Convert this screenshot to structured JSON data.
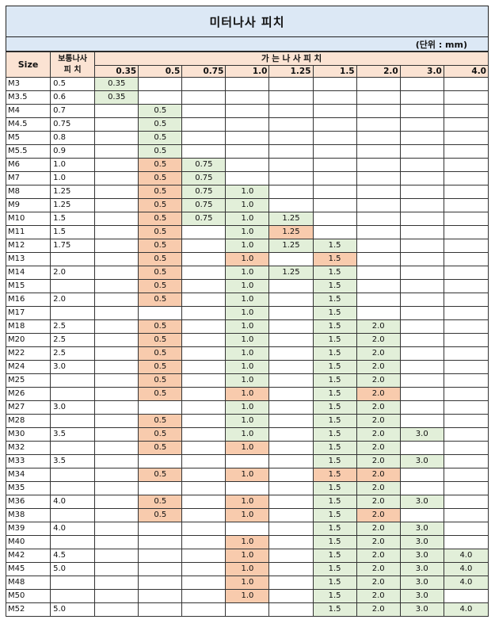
{
  "title": "미터나사 피치",
  "unit": "(단위 : mm)",
  "headers": {
    "size": "Size",
    "standard_line1": "보통나사",
    "standard_line2": "피  치",
    "fine_pitch": "가 는 나 사 피 치",
    "pitches": [
      "0.35",
      "0.5",
      "0.75",
      "1.0",
      "1.25",
      "1.5",
      "2.0",
      "3.0",
      "4.0"
    ]
  },
  "colors": {
    "header": "#fbe3d3",
    "title": "#dce8f5",
    "green": "#e2efd9",
    "orange": "#f8cbad"
  },
  "rows": [
    {
      "size": "M3",
      "std": "0.5",
      "cells": [
        {
          "v": "0.35",
          "c": "g"
        },
        {},
        {},
        {},
        {},
        {},
        {},
        {},
        {}
      ]
    },
    {
      "size": "M3.5",
      "std": "0.6",
      "cells": [
        {
          "v": "0.35",
          "c": "g"
        },
        {},
        {},
        {},
        {},
        {},
        {},
        {},
        {}
      ]
    },
    {
      "size": "M4",
      "std": "0.7",
      "cells": [
        {},
        {
          "v": "0.5",
          "c": "g"
        },
        {},
        {},
        {},
        {},
        {},
        {},
        {}
      ]
    },
    {
      "size": "M4.5",
      "std": "0.75",
      "cells": [
        {},
        {
          "v": "0.5",
          "c": "g"
        },
        {},
        {},
        {},
        {},
        {},
        {},
        {}
      ]
    },
    {
      "size": "M5",
      "std": "0.8",
      "cells": [
        {},
        {
          "v": "0.5",
          "c": "g"
        },
        {},
        {},
        {},
        {},
        {},
        {},
        {}
      ]
    },
    {
      "size": "M5.5",
      "std": "0.9",
      "cells": [
        {},
        {
          "v": "0.5",
          "c": "g"
        },
        {},
        {},
        {},
        {},
        {},
        {},
        {}
      ]
    },
    {
      "size": "M6",
      "std": "1.0",
      "cells": [
        {},
        {
          "v": "0.5",
          "c": "o"
        },
        {
          "v": "0.75",
          "c": "g"
        },
        {},
        {},
        {},
        {},
        {},
        {}
      ]
    },
    {
      "size": "M7",
      "std": "1.0",
      "cells": [
        {},
        {
          "v": "0.5",
          "c": "o"
        },
        {
          "v": "0.75",
          "c": "g"
        },
        {},
        {},
        {},
        {},
        {},
        {}
      ]
    },
    {
      "size": "M8",
      "std": "1.25",
      "cells": [
        {},
        {
          "v": "0.5",
          "c": "o"
        },
        {
          "v": "0.75",
          "c": "g"
        },
        {
          "v": "1.0",
          "c": "g"
        },
        {},
        {},
        {},
        {},
        {}
      ]
    },
    {
      "size": "M9",
      "std": "1.25",
      "cells": [
        {},
        {
          "v": "0.5",
          "c": "o"
        },
        {
          "v": "0.75",
          "c": "g"
        },
        {
          "v": "1.0",
          "c": "g"
        },
        {},
        {},
        {},
        {},
        {}
      ]
    },
    {
      "size": "M10",
      "std": "1.5",
      "cells": [
        {},
        {
          "v": "0.5",
          "c": "o"
        },
        {
          "v": "0.75",
          "c": "g"
        },
        {
          "v": "1.0",
          "c": "g"
        },
        {
          "v": "1.25",
          "c": "g"
        },
        {},
        {},
        {},
        {}
      ]
    },
    {
      "size": "M11",
      "std": "1.5",
      "cells": [
        {},
        {
          "v": "0.5",
          "c": "o"
        },
        {},
        {
          "v": "1.0",
          "c": "g"
        },
        {
          "v": "1.25",
          "c": "o"
        },
        {},
        {},
        {},
        {}
      ]
    },
    {
      "size": "M12",
      "std": "1.75",
      "cells": [
        {},
        {
          "v": "0.5",
          "c": "o"
        },
        {},
        {
          "v": "1.0",
          "c": "g"
        },
        {
          "v": "1.25",
          "c": "g"
        },
        {
          "v": "1.5",
          "c": "g"
        },
        {},
        {},
        {}
      ]
    },
    {
      "size": "M13",
      "std": "",
      "cells": [
        {},
        {
          "v": "0.5",
          "c": "o"
        },
        {},
        {
          "v": "1.0",
          "c": "o"
        },
        {},
        {
          "v": "1.5",
          "c": "o"
        },
        {},
        {},
        {}
      ]
    },
    {
      "size": "M14",
      "std": "2.0",
      "cells": [
        {},
        {
          "v": "0.5",
          "c": "o"
        },
        {},
        {
          "v": "1.0",
          "c": "g"
        },
        {
          "v": "1.25",
          "c": "g"
        },
        {
          "v": "1.5",
          "c": "g"
        },
        {},
        {},
        {}
      ]
    },
    {
      "size": "M15",
      "std": "",
      "cells": [
        {},
        {
          "v": "0.5",
          "c": "o"
        },
        {},
        {
          "v": "1.0",
          "c": "g"
        },
        {},
        {
          "v": "1.5",
          "c": "g"
        },
        {},
        {},
        {}
      ]
    },
    {
      "size": "M16",
      "std": "2.0",
      "cells": [
        {},
        {
          "v": "0.5",
          "c": "o"
        },
        {},
        {
          "v": "1.0",
          "c": "g"
        },
        {},
        {
          "v": "1.5",
          "c": "g"
        },
        {},
        {},
        {}
      ]
    },
    {
      "size": "M17",
      "std": "",
      "cells": [
        {},
        {},
        {},
        {
          "v": "1.0",
          "c": "g"
        },
        {},
        {
          "v": "1.5",
          "c": "g"
        },
        {},
        {},
        {}
      ]
    },
    {
      "size": "M18",
      "std": "2.5",
      "cells": [
        {},
        {
          "v": "0.5",
          "c": "o"
        },
        {},
        {
          "v": "1.0",
          "c": "g"
        },
        {},
        {
          "v": "1.5",
          "c": "g"
        },
        {
          "v": "2.0",
          "c": "g"
        },
        {},
        {}
      ]
    },
    {
      "size": "M20",
      "std": "2.5",
      "cells": [
        {},
        {
          "v": "0.5",
          "c": "o"
        },
        {},
        {
          "v": "1.0",
          "c": "g"
        },
        {},
        {
          "v": "1.5",
          "c": "g"
        },
        {
          "v": "2.0",
          "c": "g"
        },
        {},
        {}
      ]
    },
    {
      "size": "M22",
      "std": "2.5",
      "cells": [
        {},
        {
          "v": "0.5",
          "c": "o"
        },
        {},
        {
          "v": "1.0",
          "c": "g"
        },
        {},
        {
          "v": "1.5",
          "c": "g"
        },
        {
          "v": "2.0",
          "c": "g"
        },
        {},
        {}
      ]
    },
    {
      "size": "M24",
      "std": "3.0",
      "cells": [
        {},
        {
          "v": "0.5",
          "c": "o"
        },
        {},
        {
          "v": "1.0",
          "c": "g"
        },
        {},
        {
          "v": "1.5",
          "c": "g"
        },
        {
          "v": "2.0",
          "c": "g"
        },
        {},
        {}
      ]
    },
    {
      "size": "M25",
      "std": "",
      "cells": [
        {},
        {
          "v": "0.5",
          "c": "o"
        },
        {},
        {
          "v": "1.0",
          "c": "g"
        },
        {},
        {
          "v": "1.5",
          "c": "g"
        },
        {
          "v": "2.0",
          "c": "g"
        },
        {},
        {}
      ]
    },
    {
      "size": "M26",
      "std": "",
      "cells": [
        {},
        {
          "v": "0.5",
          "c": "o"
        },
        {},
        {
          "v": "1.0",
          "c": "o"
        },
        {},
        {
          "v": "1.5",
          "c": "g"
        },
        {
          "v": "2.0",
          "c": "o"
        },
        {},
        {}
      ]
    },
    {
      "size": "M27",
      "std": "3.0",
      "cells": [
        {},
        {},
        {},
        {
          "v": "1.0",
          "c": "g"
        },
        {},
        {
          "v": "1.5",
          "c": "g"
        },
        {
          "v": "2.0",
          "c": "g"
        },
        {},
        {}
      ]
    },
    {
      "size": "M28",
      "std": "",
      "cells": [
        {},
        {
          "v": "0.5",
          "c": "o"
        },
        {},
        {
          "v": "1.0",
          "c": "g"
        },
        {},
        {
          "v": "1.5",
          "c": "g"
        },
        {
          "v": "2.0",
          "c": "g"
        },
        {},
        {}
      ]
    },
    {
      "size": "M30",
      "std": "3.5",
      "cells": [
        {},
        {
          "v": "0.5",
          "c": "o"
        },
        {},
        {
          "v": "1.0",
          "c": "g"
        },
        {},
        {
          "v": "1.5",
          "c": "g"
        },
        {
          "v": "2.0",
          "c": "g"
        },
        {
          "v": "3.0",
          "c": "g"
        },
        {}
      ]
    },
    {
      "size": "M32",
      "std": "",
      "cells": [
        {},
        {
          "v": "0.5",
          "c": "o"
        },
        {},
        {
          "v": "1.0",
          "c": "o"
        },
        {},
        {
          "v": "1.5",
          "c": "g"
        },
        {
          "v": "2.0",
          "c": "g"
        },
        {},
        {}
      ]
    },
    {
      "size": "M33",
      "std": "3.5",
      "cells": [
        {},
        {},
        {},
        {},
        {},
        {
          "v": "1.5",
          "c": "g"
        },
        {
          "v": "2.0",
          "c": "g"
        },
        {
          "v": "3.0",
          "c": "g"
        },
        {}
      ]
    },
    {
      "size": "M34",
      "std": "",
      "cells": [
        {},
        {
          "v": "0.5",
          "c": "o"
        },
        {},
        {
          "v": "1.0",
          "c": "o"
        },
        {},
        {
          "v": "1.5",
          "c": "o"
        },
        {
          "v": "2.0",
          "c": "o"
        },
        {},
        {}
      ]
    },
    {
      "size": "M35",
      "std": "",
      "cells": [
        {},
        {},
        {},
        {},
        {},
        {
          "v": "1.5",
          "c": "g"
        },
        {
          "v": "2.0",
          "c": "g"
        },
        {},
        {}
      ]
    },
    {
      "size": "M36",
      "std": "4.0",
      "cells": [
        {},
        {
          "v": "0.5",
          "c": "o"
        },
        {},
        {
          "v": "1.0",
          "c": "o"
        },
        {},
        {
          "v": "1.5",
          "c": "g"
        },
        {
          "v": "2.0",
          "c": "g"
        },
        {
          "v": "3.0",
          "c": "g"
        },
        {}
      ]
    },
    {
      "size": "M38",
      "std": "",
      "cells": [
        {},
        {
          "v": "0.5",
          "c": "o"
        },
        {},
        {
          "v": "1.0",
          "c": "o"
        },
        {},
        {
          "v": "1.5",
          "c": "g"
        },
        {
          "v": "2.0",
          "c": "o"
        },
        {},
        {}
      ]
    },
    {
      "size": "M39",
      "std": "4.0",
      "cells": [
        {},
        {},
        {},
        {},
        {},
        {
          "v": "1.5",
          "c": "g"
        },
        {
          "v": "2.0",
          "c": "g"
        },
        {
          "v": "3.0",
          "c": "g"
        },
        {}
      ]
    },
    {
      "size": "M40",
      "std": "",
      "cells": [
        {},
        {},
        {},
        {
          "v": "1.0",
          "c": "o"
        },
        {},
        {
          "v": "1.5",
          "c": "g"
        },
        {
          "v": "2.0",
          "c": "g"
        },
        {
          "v": "3.0",
          "c": "g"
        },
        {}
      ]
    },
    {
      "size": "M42",
      "std": "4.5",
      "cells": [
        {},
        {},
        {},
        {
          "v": "1.0",
          "c": "o"
        },
        {},
        {
          "v": "1.5",
          "c": "g"
        },
        {
          "v": "2.0",
          "c": "g"
        },
        {
          "v": "3.0",
          "c": "g"
        },
        {
          "v": "4.0",
          "c": "g"
        }
      ]
    },
    {
      "size": "M45",
      "std": "5.0",
      "cells": [
        {},
        {},
        {},
        {
          "v": "1.0",
          "c": "o"
        },
        {},
        {
          "v": "1.5",
          "c": "g"
        },
        {
          "v": "2.0",
          "c": "g"
        },
        {
          "v": "3.0",
          "c": "g"
        },
        {
          "v": "4.0",
          "c": "g"
        }
      ]
    },
    {
      "size": "M48",
      "std": "",
      "cells": [
        {},
        {},
        {},
        {
          "v": "1.0",
          "c": "o"
        },
        {},
        {
          "v": "1.5",
          "c": "g"
        },
        {
          "v": "2.0",
          "c": "g"
        },
        {
          "v": "3.0",
          "c": "g"
        },
        {
          "v": "4.0",
          "c": "g"
        }
      ]
    },
    {
      "size": "M50",
      "std": "",
      "cells": [
        {},
        {},
        {},
        {
          "v": "1.0",
          "c": "o"
        },
        {},
        {
          "v": "1.5",
          "c": "g"
        },
        {
          "v": "2.0",
          "c": "g"
        },
        {
          "v": "3.0",
          "c": "g"
        },
        {}
      ]
    },
    {
      "size": "M52",
      "std": "5.0",
      "cells": [
        {},
        {},
        {},
        {},
        {},
        {
          "v": "1.5",
          "c": "g"
        },
        {
          "v": "2.0",
          "c": "g"
        },
        {
          "v": "3.0",
          "c": "g"
        },
        {
          "v": "4.0",
          "c": "g"
        }
      ]
    }
  ]
}
